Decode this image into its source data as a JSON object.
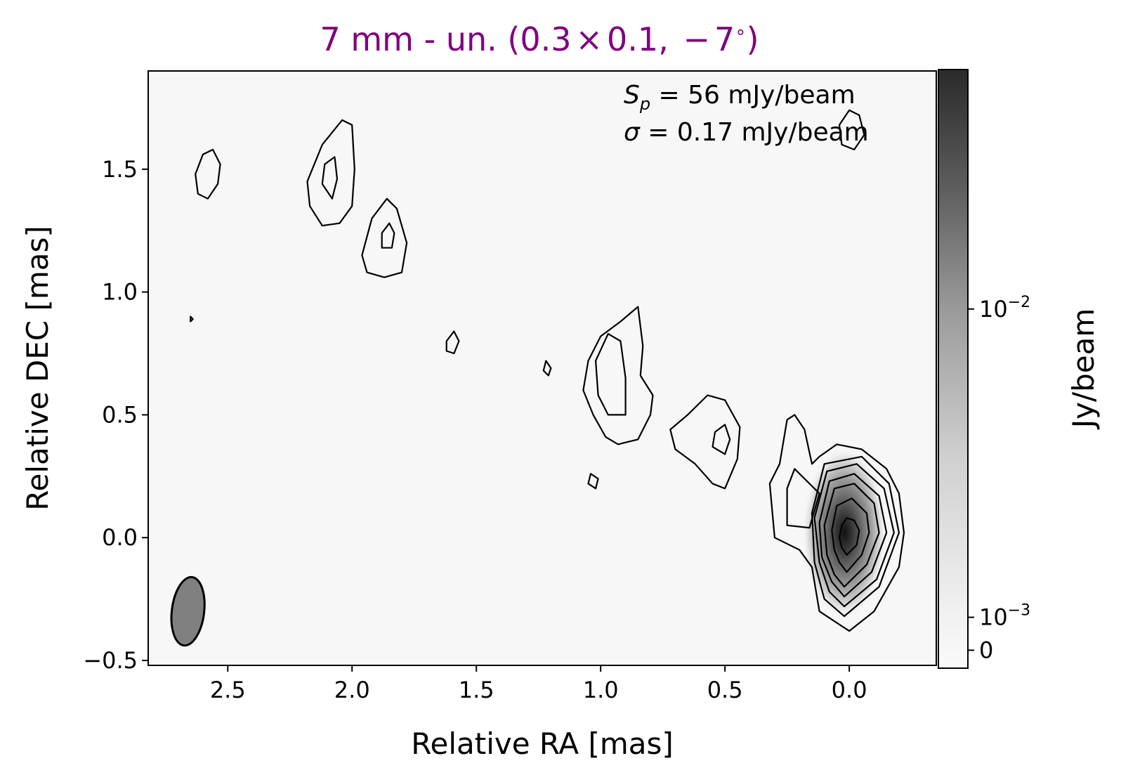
{
  "chart_data": {
    "type": "heatmap",
    "title_parts": {
      "main": "7 mm - un. (0.3",
      "times": "×",
      "mid": "0.1, ",
      "minus": "−",
      "angle": "7",
      "degree": "∘",
      "close": ")"
    },
    "title_color": "#800080",
    "xlabel": "Relative RA [mas]",
    "ylabel": "Relative DEC [mas]",
    "xlim": [
      2.82,
      -0.35
    ],
    "ylim": [
      -0.52,
      1.9
    ],
    "x_ticks": [
      {
        "value": 2.5,
        "label": "2.5"
      },
      {
        "value": 2.0,
        "label": "2.0"
      },
      {
        "value": 1.5,
        "label": "1.5"
      },
      {
        "value": 1.0,
        "label": "1.0"
      },
      {
        "value": 0.5,
        "label": "0.5"
      },
      {
        "value": 0.0,
        "label": "0.0"
      }
    ],
    "y_ticks": [
      {
        "value": -0.5,
        "label": "−0.5"
      },
      {
        "value": 0.0,
        "label": "0.0"
      },
      {
        "value": 0.5,
        "label": "0.5"
      },
      {
        "value": 1.0,
        "label": "1.0"
      },
      {
        "value": 1.5,
        "label": "1.5"
      }
    ],
    "annotations": {
      "peak": {
        "sym": "S",
        "sub": "p",
        "eq": " = ",
        "value": "56 mJy/beam"
      },
      "noise": {
        "sym": "σ",
        "eq": " = ",
        "value": "0.17 mJy/beam"
      }
    },
    "colorbar": {
      "label": "Jy/beam",
      "colormap": "greys",
      "ticks": [
        {
          "base": "10",
          "exp": "−2",
          "frac": 0.6
        },
        {
          "base": "10",
          "exp": "−3",
          "frac": 0.085
        },
        {
          "base": "0",
          "exp": "",
          "frac": 0.03
        }
      ]
    },
    "beam": {
      "ra": 2.66,
      "dec": -0.3,
      "major_mas": 0.28,
      "minor_mas": 0.13,
      "pa_deg": -7,
      "fill": "#808080"
    },
    "core": {
      "ra": 0.02,
      "dec": 0.02,
      "peak_jy_per_beam": 0.056
    },
    "contours": [
      {
        "name": "core-outer",
        "points": [
          [
            0.0,
            -0.38
          ],
          [
            -0.1,
            -0.3
          ],
          [
            -0.2,
            -0.12
          ],
          [
            -0.22,
            0.02
          ],
          [
            -0.2,
            0.18
          ],
          [
            -0.15,
            0.28
          ],
          [
            -0.05,
            0.36
          ],
          [
            0.05,
            0.38
          ],
          [
            0.12,
            0.33
          ],
          [
            0.15,
            0.3
          ],
          [
            0.18,
            0.44
          ],
          [
            0.22,
            0.5
          ],
          [
            0.25,
            0.48
          ],
          [
            0.28,
            0.3
          ],
          [
            0.32,
            0.22
          ],
          [
            0.3,
            0.0
          ],
          [
            0.2,
            -0.05
          ],
          [
            0.15,
            -0.12
          ],
          [
            0.12,
            -0.3
          ]
        ]
      },
      {
        "name": "core-arm-inner",
        "points": [
          [
            0.22,
            0.28
          ],
          [
            0.25,
            0.2
          ],
          [
            0.25,
            0.05
          ],
          [
            0.16,
            0.04
          ],
          [
            0.12,
            0.18
          ]
        ]
      },
      {
        "name": "core-level-3",
        "points": [
          [
            0.02,
            -0.32
          ],
          [
            -0.12,
            -0.2
          ],
          [
            -0.2,
            0.02
          ],
          [
            -0.16,
            0.22
          ],
          [
            -0.05,
            0.33
          ],
          [
            0.1,
            0.3
          ],
          [
            0.15,
            0.1
          ],
          [
            0.14,
            -0.1
          ],
          [
            0.1,
            -0.25
          ]
        ]
      },
      {
        "name": "core-level-4",
        "points": [
          [
            0.02,
            -0.28
          ],
          [
            -0.11,
            -0.17
          ],
          [
            -0.18,
            0.02
          ],
          [
            -0.14,
            0.2
          ],
          [
            -0.03,
            0.3
          ],
          [
            0.09,
            0.27
          ],
          [
            0.14,
            0.08
          ],
          [
            0.12,
            -0.1
          ],
          [
            0.08,
            -0.22
          ]
        ]
      },
      {
        "name": "core-level-5",
        "points": [
          [
            0.02,
            -0.24
          ],
          [
            -0.09,
            -0.14
          ],
          [
            -0.15,
            0.02
          ],
          [
            -0.12,
            0.17
          ],
          [
            -0.02,
            0.26
          ],
          [
            0.08,
            0.23
          ],
          [
            0.12,
            0.06
          ],
          [
            0.11,
            -0.08
          ],
          [
            0.07,
            -0.18
          ]
        ]
      },
      {
        "name": "core-level-6",
        "points": [
          [
            0.02,
            -0.2
          ],
          [
            -0.07,
            -0.11
          ],
          [
            -0.12,
            0.02
          ],
          [
            -0.1,
            0.14
          ],
          [
            -0.02,
            0.22
          ],
          [
            0.06,
            0.2
          ],
          [
            0.1,
            0.05
          ],
          [
            0.09,
            -0.07
          ],
          [
            0.06,
            -0.15
          ]
        ]
      },
      {
        "name": "core-level-7",
        "points": [
          [
            0.01,
            -0.14
          ],
          [
            -0.05,
            -0.07
          ],
          [
            -0.08,
            0.02
          ],
          [
            -0.07,
            0.1
          ],
          [
            -0.01,
            0.16
          ],
          [
            0.05,
            0.13
          ],
          [
            0.07,
            0.03
          ],
          [
            0.06,
            -0.05
          ],
          [
            0.04,
            -0.1
          ]
        ]
      },
      {
        "name": "core-level-8",
        "points": [
          [
            0.01,
            -0.07
          ],
          [
            -0.03,
            -0.03
          ],
          [
            -0.04,
            0.03
          ],
          [
            -0.02,
            0.07
          ],
          [
            0.01,
            0.08
          ],
          [
            0.03,
            0.05
          ],
          [
            0.04,
            0.0
          ],
          [
            0.03,
            -0.04
          ]
        ]
      },
      {
        "name": "knot-0p5-outer",
        "points": [
          [
            0.5,
            0.2
          ],
          [
            0.45,
            0.32
          ],
          [
            0.44,
            0.45
          ],
          [
            0.5,
            0.56
          ],
          [
            0.57,
            0.58
          ],
          [
            0.65,
            0.5
          ],
          [
            0.72,
            0.44
          ],
          [
            0.7,
            0.36
          ],
          [
            0.62,
            0.3
          ],
          [
            0.55,
            0.22
          ]
        ]
      },
      {
        "name": "knot-0p5-inner",
        "points": [
          [
            0.5,
            0.34
          ],
          [
            0.48,
            0.4
          ],
          [
            0.5,
            0.46
          ],
          [
            0.54,
            0.43
          ],
          [
            0.55,
            0.37
          ]
        ]
      },
      {
        "name": "knot-0p9-outer",
        "points": [
          [
            0.8,
            0.5
          ],
          [
            0.79,
            0.58
          ],
          [
            0.84,
            0.66
          ],
          [
            0.83,
            0.78
          ],
          [
            0.85,
            0.94
          ],
          [
            0.92,
            0.88
          ],
          [
            1.0,
            0.82
          ],
          [
            1.05,
            0.72
          ],
          [
            1.07,
            0.6
          ],
          [
            1.03,
            0.5
          ],
          [
            0.98,
            0.41
          ],
          [
            0.93,
            0.38
          ],
          [
            0.85,
            0.4
          ]
        ]
      },
      {
        "name": "knot-0p9-inner",
        "points": [
          [
            0.9,
            0.5
          ],
          [
            0.9,
            0.65
          ],
          [
            0.92,
            0.8
          ],
          [
            0.97,
            0.83
          ],
          [
            1.02,
            0.72
          ],
          [
            1.01,
            0.58
          ],
          [
            0.97,
            0.5
          ]
        ]
      },
      {
        "name": "knot-top-right",
        "points": [
          [
            -0.02,
            1.58
          ],
          [
            -0.06,
            1.64
          ],
          [
            -0.04,
            1.72
          ],
          [
            0.0,
            1.74
          ],
          [
            0.04,
            1.68
          ],
          [
            0.03,
            1.6
          ]
        ]
      },
      {
        "name": "knot-1p2",
        "points": [
          [
            1.21,
            0.66
          ],
          [
            1.2,
            0.69
          ],
          [
            1.22,
            0.72
          ],
          [
            1.23,
            0.68
          ]
        ]
      },
      {
        "name": "knot-1p05",
        "points": [
          [
            1.02,
            0.2
          ],
          [
            1.01,
            0.24
          ],
          [
            1.04,
            0.26
          ],
          [
            1.05,
            0.22
          ]
        ]
      },
      {
        "name": "knot-1p6",
        "points": [
          [
            1.59,
            0.75
          ],
          [
            1.57,
            0.8
          ],
          [
            1.59,
            0.84
          ],
          [
            1.62,
            0.8
          ],
          [
            1.62,
            0.76
          ]
        ]
      },
      {
        "name": "knot-1p85-outer",
        "points": [
          [
            1.8,
            1.08
          ],
          [
            1.78,
            1.2
          ],
          [
            1.82,
            1.34
          ],
          [
            1.86,
            1.38
          ],
          [
            1.92,
            1.3
          ],
          [
            1.96,
            1.15
          ],
          [
            1.94,
            1.08
          ],
          [
            1.87,
            1.06
          ]
        ]
      },
      {
        "name": "knot-1p85-inner",
        "points": [
          [
            1.84,
            1.18
          ],
          [
            1.83,
            1.24
          ],
          [
            1.85,
            1.28
          ],
          [
            1.88,
            1.24
          ],
          [
            1.88,
            1.18
          ]
        ]
      },
      {
        "name": "knot-2p1-outer",
        "points": [
          [
            2.05,
            1.28
          ],
          [
            2.0,
            1.35
          ],
          [
            1.99,
            1.5
          ],
          [
            2.0,
            1.68
          ],
          [
            2.04,
            1.7
          ],
          [
            2.12,
            1.6
          ],
          [
            2.18,
            1.45
          ],
          [
            2.17,
            1.35
          ],
          [
            2.12,
            1.27
          ]
        ]
      },
      {
        "name": "knot-2p1-inner",
        "points": [
          [
            2.08,
            1.38
          ],
          [
            2.06,
            1.46
          ],
          [
            2.07,
            1.55
          ],
          [
            2.11,
            1.52
          ],
          [
            2.12,
            1.44
          ]
        ]
      },
      {
        "name": "knot-2p55",
        "points": [
          [
            2.58,
            1.38
          ],
          [
            2.54,
            1.44
          ],
          [
            2.53,
            1.52
          ],
          [
            2.56,
            1.58
          ],
          [
            2.6,
            1.56
          ],
          [
            2.63,
            1.48
          ],
          [
            2.62,
            1.4
          ]
        ]
      },
      {
        "name": "knot-dot-2p65",
        "points": [
          [
            2.65,
            0.88
          ],
          [
            2.64,
            0.89
          ],
          [
            2.65,
            0.9
          ]
        ]
      }
    ]
  }
}
